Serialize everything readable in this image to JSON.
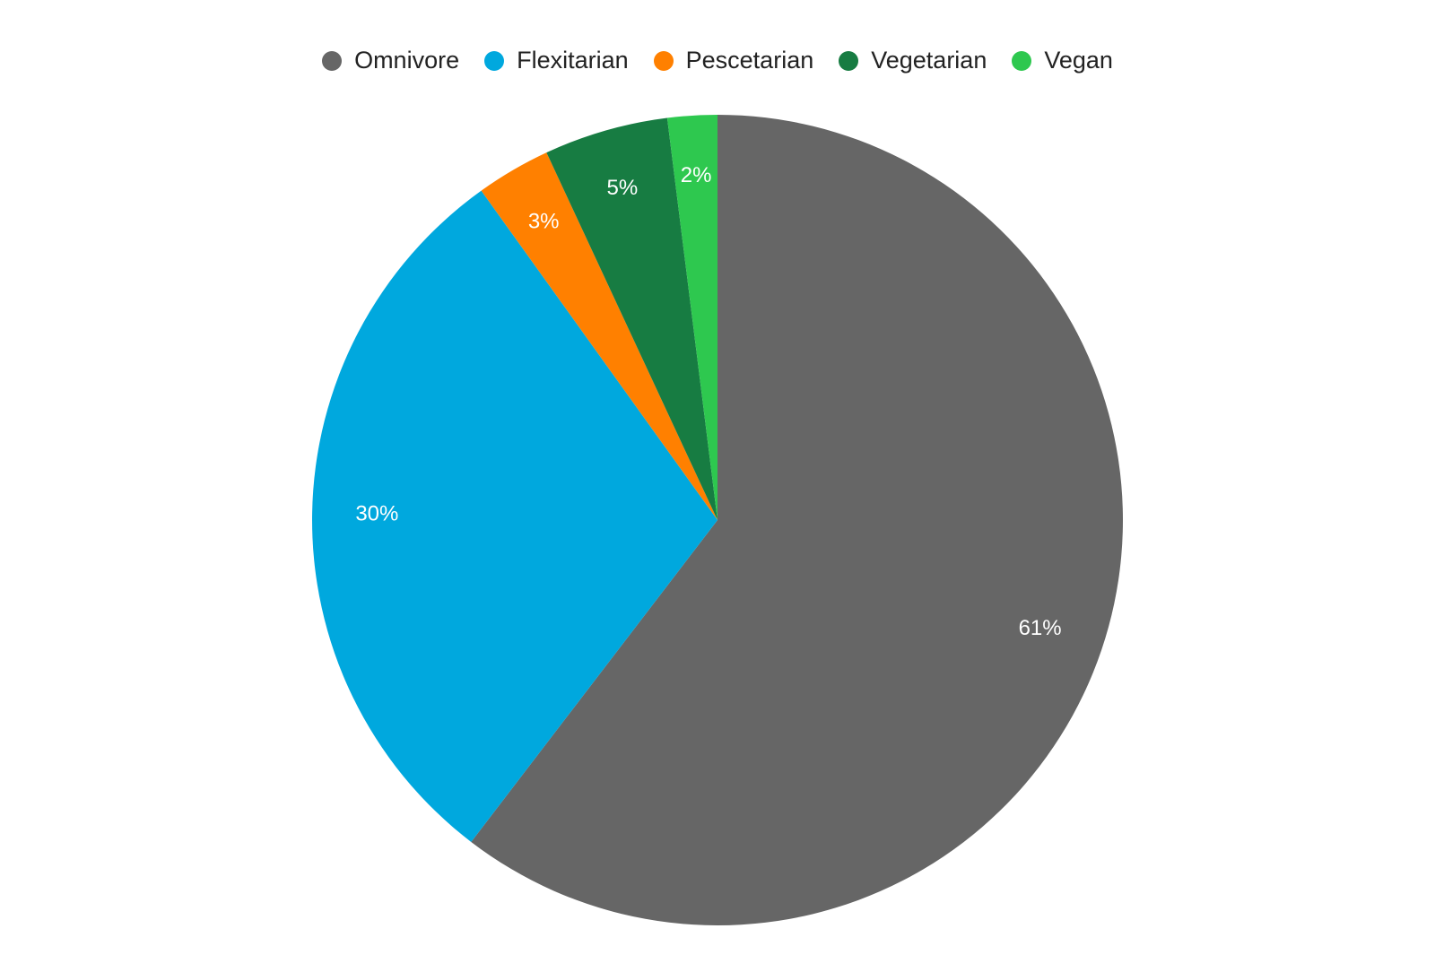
{
  "chart_data": {
    "type": "pie",
    "title": "",
    "legend_position": "top",
    "slices": [
      {
        "label": "Omnivore",
        "value": 61,
        "display": "61%",
        "color": "#666666"
      },
      {
        "label": "Flexitarian",
        "value": 30,
        "display": "30%",
        "color": "#00a8de"
      },
      {
        "label": "Pescetarian",
        "value": 3,
        "display": "3%",
        "color": "#ff8000"
      },
      {
        "label": "Vegetarian",
        "value": 5,
        "display": "5%",
        "color": "#177c42"
      },
      {
        "label": "Vegan",
        "value": 2,
        "display": "2%",
        "color": "#2ec84f"
      }
    ]
  }
}
